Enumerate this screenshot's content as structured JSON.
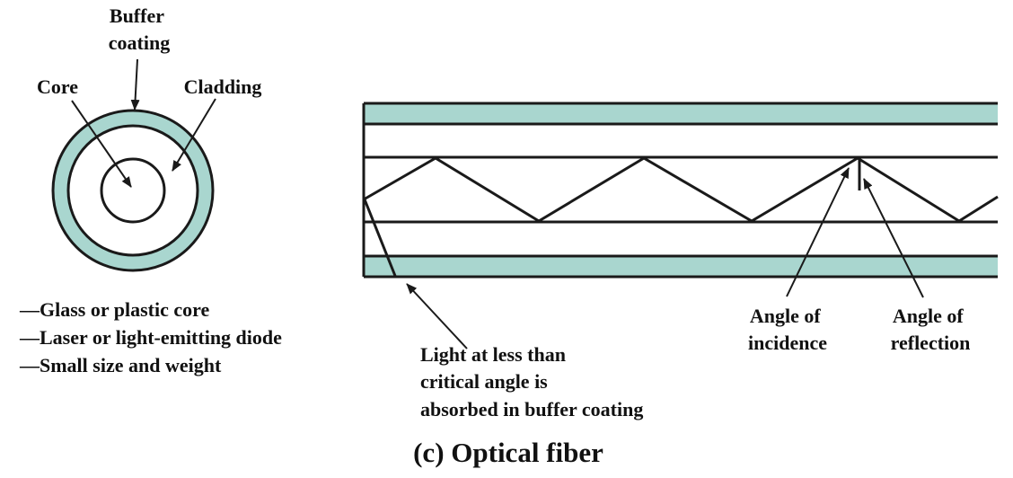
{
  "colors": {
    "buffer_fill": "#a9d6cf",
    "stroke": "#1a1a1a",
    "background": "#ffffff"
  },
  "labels": {
    "buffer_line1": "Buffer",
    "buffer_line2": "coating",
    "core": "Core",
    "cladding": "Cladding",
    "angle_incidence_line1": "Angle of",
    "angle_incidence_line2": "incidence",
    "angle_reflection_line1": "Angle of",
    "angle_reflection_line2": "reflection",
    "absorbed_line1": "Light at less than",
    "absorbed_line2": "critical angle is",
    "absorbed_line3": "absorbed in buffer coating"
  },
  "features": [
    "—Glass or plastic core",
    "—Laser or light-emitting diode",
    "—Small size and weight"
  ],
  "caption": "(c) Optical fiber"
}
